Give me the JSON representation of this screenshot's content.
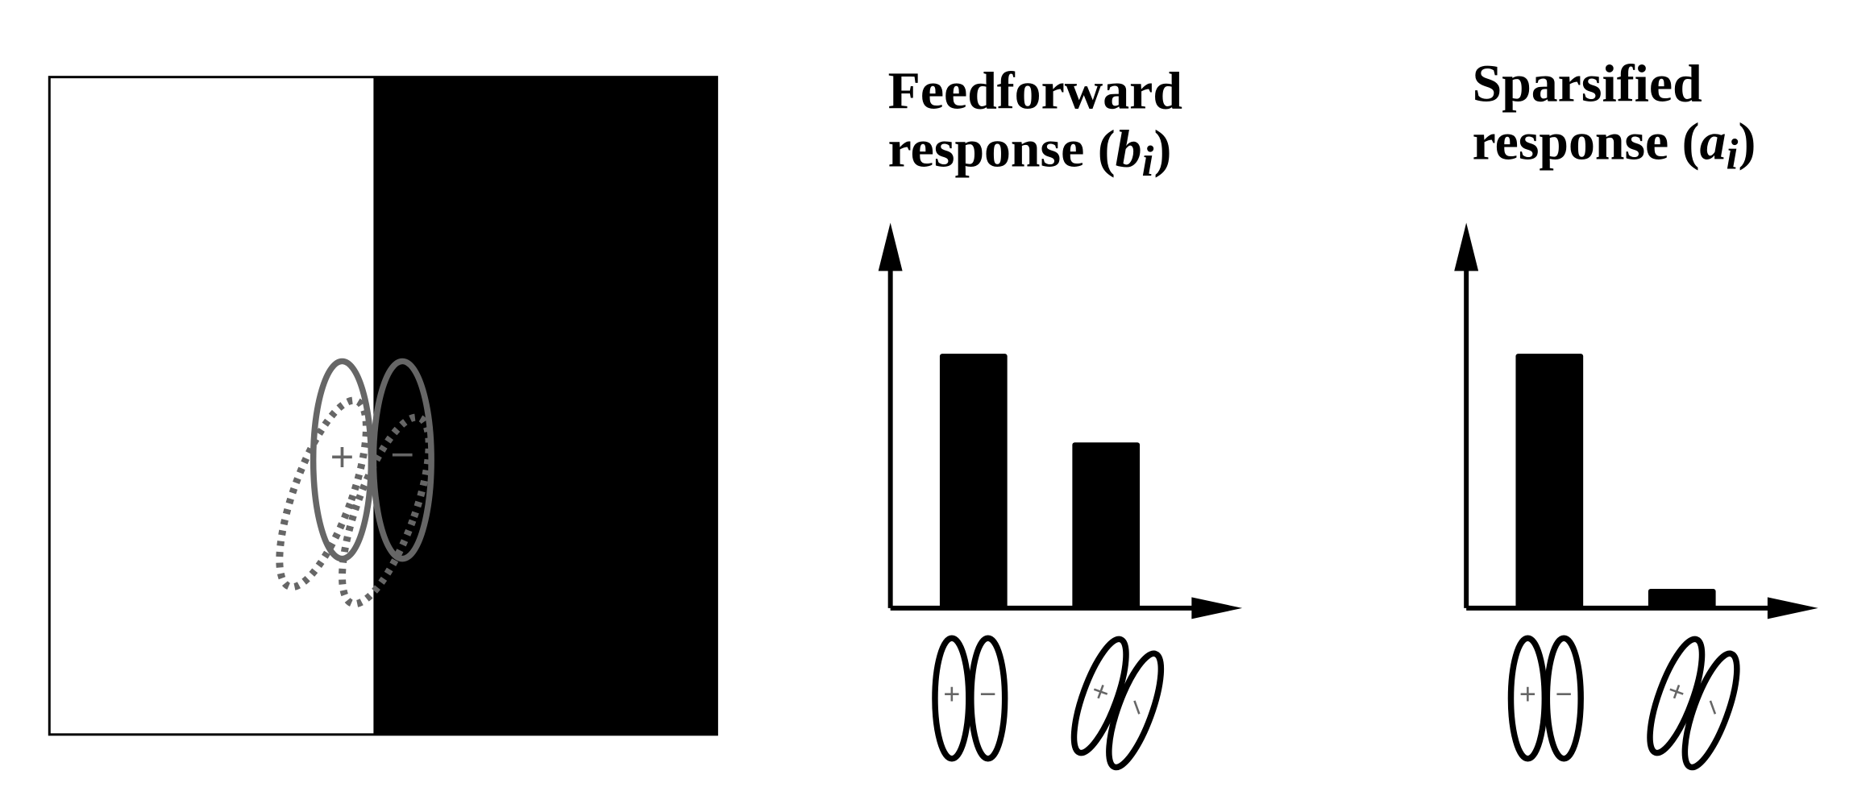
{
  "symbols": {
    "plus": "+",
    "minus": "−"
  },
  "panels": [
    {
      "title_line1": "Feedforward",
      "title_prefix": "response (",
      "title_var": "b",
      "title_sub": "i",
      "title_suffix": ")",
      "values": [
        0.66,
        0.43
      ],
      "ylim": [
        0,
        1
      ]
    },
    {
      "title_line1": "Sparsified",
      "title_prefix": "response (",
      "title_var": "a",
      "title_sub": "i",
      "title_suffix": ")",
      "values": [
        0.66,
        0.05
      ],
      "ylim": [
        0,
        1
      ]
    }
  ]
}
